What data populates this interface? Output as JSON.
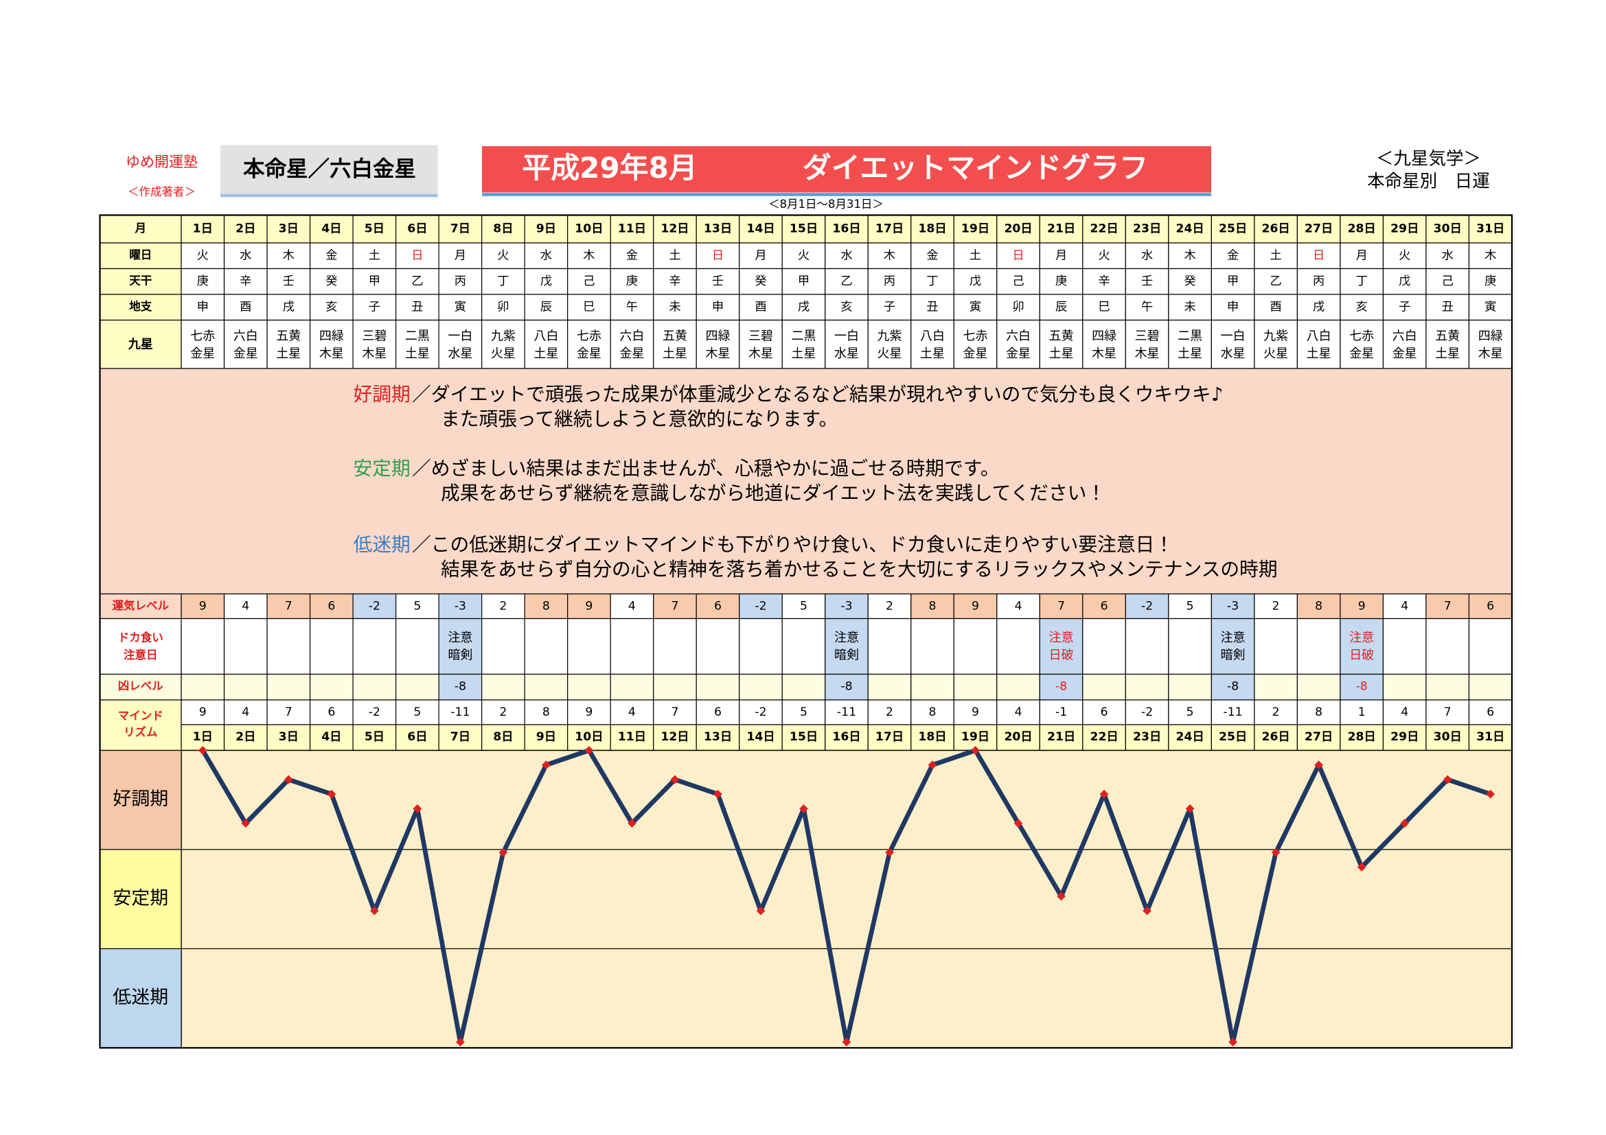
{
  "header": {
    "school": "ゆめ開運塾",
    "author": "＜作成著者＞",
    "honmei": "本命星／六白金星",
    "month": "平成29年8月",
    "title": "ダイエットマインドグラフ",
    "system": "＜九星気学＞",
    "subtitle": "本命星別　日運",
    "period": "＜8月1日～8月31日＞"
  },
  "table": {
    "row_labels": {
      "day": "月",
      "weekday": "曜日",
      "stem": "天干",
      "branch": "地支",
      "star": "九星",
      "fortune": "運気レベル",
      "binge": [
        "ドカ食い",
        "注意日"
      ],
      "bad": "凶レベル",
      "rhythm": [
        "マインド",
        "リズム"
      ]
    },
    "days": [
      "1日",
      "2日",
      "3日",
      "4日",
      "5日",
      "6日",
      "7日",
      "8日",
      "9日",
      "10日",
      "11日",
      "12日",
      "13日",
      "14日",
      "15日",
      "16日",
      "17日",
      "18日",
      "19日",
      "20日",
      "21日",
      "22日",
      "23日",
      "24日",
      "25日",
      "26日",
      "27日",
      "28日",
      "29日",
      "30日",
      "31日"
    ],
    "weekdays": [
      "火",
      "水",
      "木",
      "金",
      "土",
      "日",
      "月",
      "火",
      "水",
      "木",
      "金",
      "土",
      "日",
      "月",
      "火",
      "水",
      "木",
      "金",
      "土",
      "日",
      "月",
      "火",
      "水",
      "木",
      "金",
      "土",
      "日",
      "月",
      "火",
      "水",
      "木"
    ],
    "stems": [
      "庚",
      "辛",
      "壬",
      "癸",
      "甲",
      "乙",
      "丙",
      "丁",
      "戊",
      "己",
      "庚",
      "辛",
      "壬",
      "癸",
      "甲",
      "乙",
      "丙",
      "丁",
      "戊",
      "己",
      "庚",
      "辛",
      "壬",
      "癸",
      "甲",
      "乙",
      "丙",
      "丁",
      "戊",
      "己",
      "庚"
    ],
    "branches": [
      "申",
      "酉",
      "戌",
      "亥",
      "子",
      "丑",
      "寅",
      "卯",
      "辰",
      "巳",
      "午",
      "未",
      "申",
      "酉",
      "戌",
      "亥",
      "子",
      "丑",
      "寅",
      "卯",
      "辰",
      "巳",
      "午",
      "未",
      "申",
      "酉",
      "戌",
      "亥",
      "子",
      "丑",
      "寅"
    ],
    "stars": [
      [
        "七赤",
        "金星"
      ],
      [
        "六白",
        "金星"
      ],
      [
        "五黄",
        "土星"
      ],
      [
        "四緑",
        "木星"
      ],
      [
        "三碧",
        "木星"
      ],
      [
        "二黒",
        "土星"
      ],
      [
        "一白",
        "水星"
      ],
      [
        "九紫",
        "火星"
      ],
      [
        "八白",
        "土星"
      ],
      [
        "七赤",
        "金星"
      ],
      [
        "六白",
        "金星"
      ],
      [
        "五黄",
        "土星"
      ],
      [
        "四緑",
        "木星"
      ],
      [
        "三碧",
        "木星"
      ],
      [
        "二黒",
        "土星"
      ],
      [
        "一白",
        "水星"
      ],
      [
        "九紫",
        "火星"
      ],
      [
        "八白",
        "土星"
      ],
      [
        "七赤",
        "金星"
      ],
      [
        "六白",
        "金星"
      ],
      [
        "五黄",
        "土星"
      ],
      [
        "四緑",
        "木星"
      ],
      [
        "三碧",
        "木星"
      ],
      [
        "二黒",
        "土星"
      ],
      [
        "一白",
        "水星"
      ],
      [
        "九紫",
        "火星"
      ],
      [
        "八白",
        "土星"
      ],
      [
        "七赤",
        "金星"
      ],
      [
        "六白",
        "金星"
      ],
      [
        "五黄",
        "土星"
      ],
      [
        "四緑",
        "木星"
      ]
    ],
    "fortune": [
      9,
      4,
      7,
      6,
      -2,
      5,
      -3,
      2,
      8,
      9,
      4,
      7,
      6,
      -2,
      5,
      -3,
      2,
      8,
      9,
      4,
      7,
      6,
      -2,
      5,
      -3,
      2,
      8,
      9,
      4,
      7,
      6
    ],
    "binge": [
      null,
      null,
      null,
      null,
      null,
      null,
      [
        "注意",
        "暗剣"
      ],
      null,
      null,
      null,
      null,
      null,
      null,
      null,
      null,
      [
        "注意",
        "暗剣"
      ],
      null,
      null,
      null,
      null,
      [
        "注意",
        "日破"
      ],
      null,
      null,
      null,
      [
        "注意",
        "暗剣"
      ],
      null,
      null,
      [
        "注意",
        "日破"
      ],
      null,
      null,
      null
    ],
    "bad": [
      null,
      null,
      null,
      null,
      null,
      null,
      -8,
      null,
      null,
      null,
      null,
      null,
      null,
      null,
      null,
      -8,
      null,
      null,
      null,
      null,
      -8,
      null,
      null,
      null,
      -8,
      null,
      null,
      -8,
      null,
      null,
      null
    ]
  },
  "legend": [
    {
      "label": "好調期",
      "lines": [
        "／ダイエットで頑張った成果が体重減少となるなど結果が現れやすいので気分も良くウキウキ♪",
        "また頑張って継続しようと意欲的になります。"
      ]
    },
    {
      "label": "安定期",
      "lines": [
        "／めざましい結果はまだ出ませんが、心穏やかに過ごせる時期です。",
        "成果をあせらず継続を意識しながら地道にダイエット法を実践してください！"
      ]
    },
    {
      "label": "低迷期",
      "lines": [
        "／この低迷期にダイエットマインドも下がりやけ食い、ドカ食いに走りやすい要注意日！",
        "結果をあせらず自分の心と精神を落ち着かせることを大切にするリラックスやメンテナンスの時期"
      ]
    }
  ],
  "chart_data": {
    "type": "line",
    "values": [
      9,
      4,
      7,
      6,
      -2,
      5,
      -11,
      2,
      8,
      9,
      4,
      7,
      6,
      -2,
      5,
      -11,
      2,
      8,
      9,
      4,
      -1,
      6,
      -2,
      5,
      -11,
      2,
      8,
      1,
      4,
      7,
      6
    ],
    "ylim": [
      -11.4,
      9
    ],
    "color": "#1f3864",
    "marker_color": "#e02020"
  }
}
